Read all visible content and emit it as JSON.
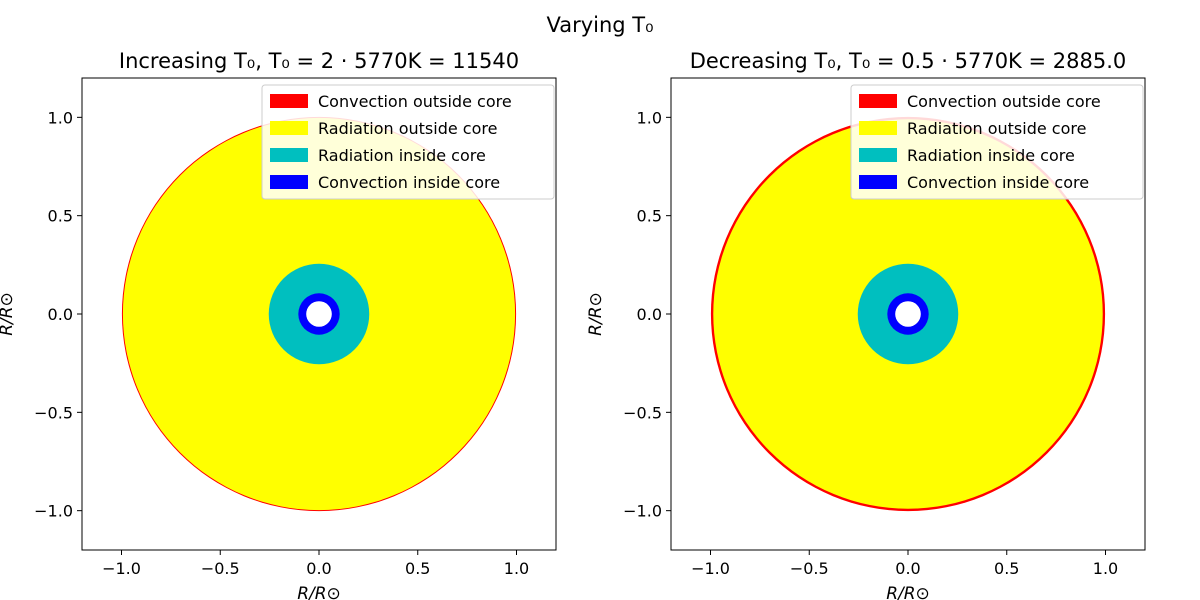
{
  "suptitle": "Varying T₀",
  "colors": {
    "convection_outside": "#ff0000",
    "radiation_outside": "#ffff00",
    "radiation_inside": "#00bfbf",
    "convection_inside": "#0000ff"
  },
  "chart_data": [
    {
      "type": "diagram",
      "title": "Increasing T₀, T₀ = 2 · 5770K = 11540",
      "xlabel": "R/R⊙",
      "ylabel": "R/R⊙",
      "xlim": [
        -1.2,
        1.2
      ],
      "ylim": [
        -1.2,
        1.2
      ],
      "xticks": [
        -1.0,
        -0.5,
        0.0,
        0.5,
        1.0
      ],
      "yticks": [
        -1.0,
        -0.5,
        0.0,
        0.5,
        1.0
      ],
      "xtick_labels": [
        "−1.0",
        "−0.5",
        "0.0",
        "0.5",
        "1.0"
      ],
      "ytick_labels": [
        "−1.0",
        "−0.5",
        "0.0",
        "0.5",
        "1.0"
      ],
      "legend_position": "top-right",
      "legend": [
        {
          "label": "Convection outside core",
          "color": "#ff0000"
        },
        {
          "label": "Radiation outside core",
          "color": "#ffff00"
        },
        {
          "label": "Radiation inside core",
          "color": "#00bfbf"
        },
        {
          "label": "Convection inside core",
          "color": "#0000ff"
        }
      ],
      "outer_radius": 1.0,
      "outer_convection_shell": 0.005,
      "core_radius": 0.255,
      "inner_convection_outer": 0.105,
      "inner_convection_inner": 0.065
    },
    {
      "type": "diagram",
      "title": "Decreasing T₀, T₀ = 0.5 · 5770K = 2885.0",
      "xlabel": "R/R⊙",
      "ylabel": "R/R⊙",
      "xlim": [
        -1.2,
        1.2
      ],
      "ylim": [
        -1.2,
        1.2
      ],
      "xticks": [
        -1.0,
        -0.5,
        0.0,
        0.5,
        1.0
      ],
      "yticks": [
        -1.0,
        -0.5,
        0.0,
        0.5,
        1.0
      ],
      "xtick_labels": [
        "−1.0",
        "−0.5",
        "0.0",
        "0.5",
        "1.0"
      ],
      "ytick_labels": [
        "−1.0",
        "−0.5",
        "0.0",
        "0.5",
        "1.0"
      ],
      "legend_position": "top-right",
      "legend": [
        {
          "label": "Convection outside core",
          "color": "#ff0000"
        },
        {
          "label": "Radiation outside core",
          "color": "#ffff00"
        },
        {
          "label": "Radiation inside core",
          "color": "#00bfbf"
        },
        {
          "label": "Convection inside core",
          "color": "#0000ff"
        }
      ],
      "outer_radius": 1.0,
      "outer_convection_shell": 0.012,
      "core_radius": 0.255,
      "inner_convection_outer": 0.105,
      "inner_convection_inner": 0.065
    }
  ]
}
